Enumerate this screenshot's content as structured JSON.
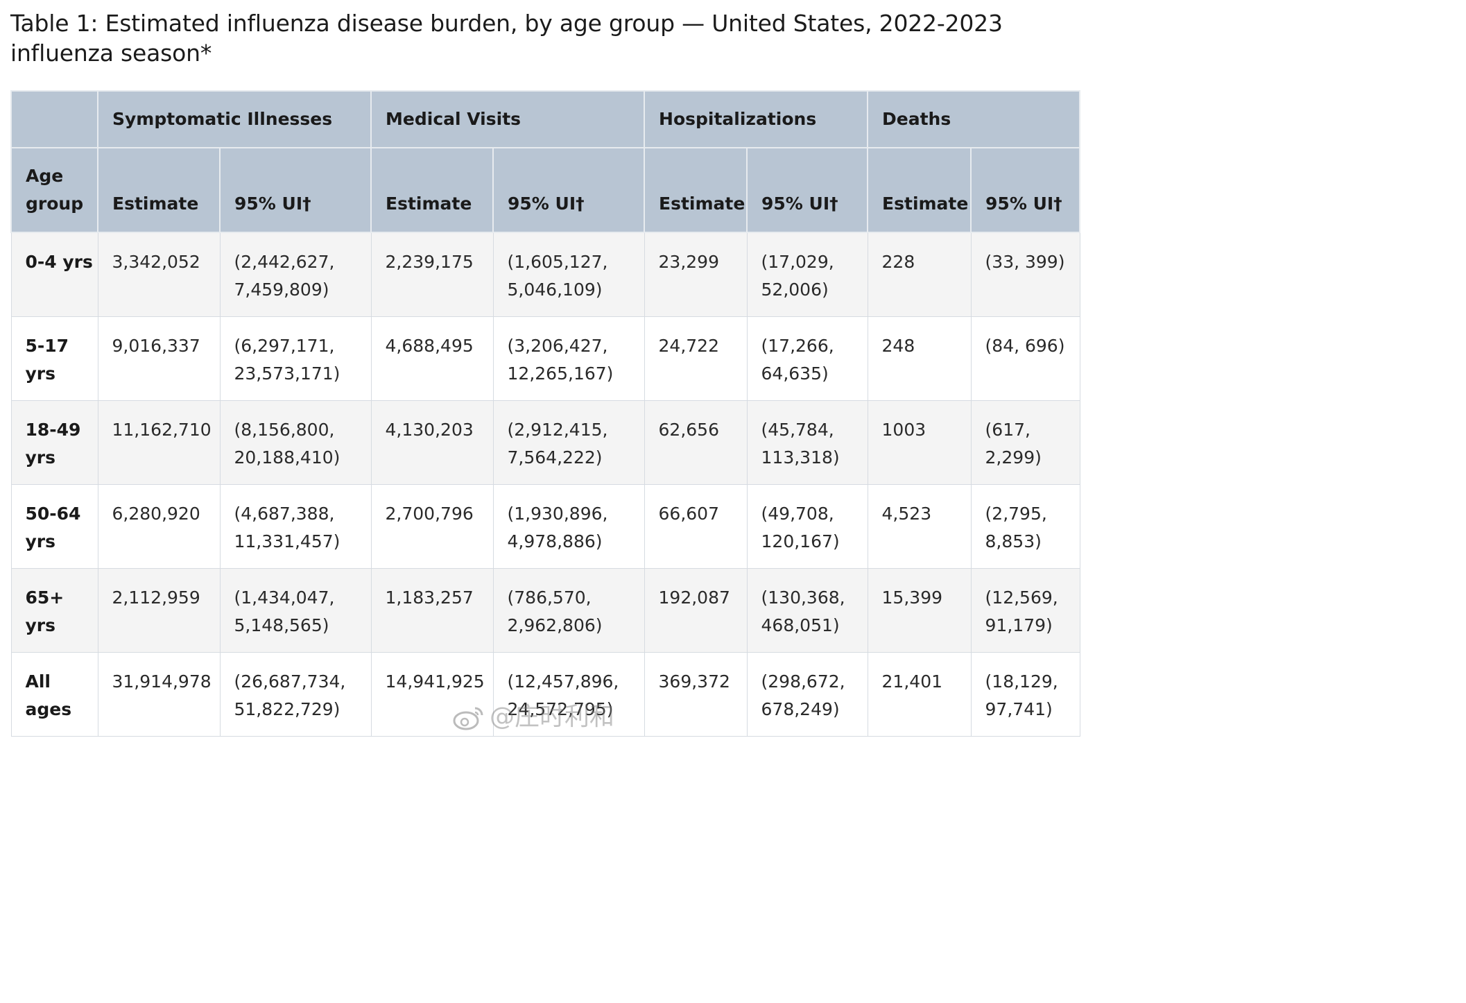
{
  "caption": "Table 1: Estimated influenza disease burden, by age group — United States, 2022-2023 influenza season*",
  "table": {
    "group_headers": [
      "",
      "Symptomatic Illnesses",
      "Medical Visits",
      "Hospitalizations",
      "Deaths"
    ],
    "sub_headers": [
      "Age group",
      "Estimate",
      "95% UI†",
      "Estimate",
      "95% UI†",
      "Estimate",
      "95% UI†",
      "Estimate",
      "95% UI†"
    ],
    "rows": [
      {
        "age": "0-4 yrs",
        "ill_est": "3,342,052",
        "ill_ui": "(2,442,627, 7,459,809)",
        "med_est": "2,239,175",
        "med_ui": "(1,605,127, 5,046,109)",
        "hosp_est": "23,299",
        "hosp_ui": "(17,029, 52,006)",
        "death_est": "228",
        "death_ui": "(33, 399)"
      },
      {
        "age": "5-17 yrs",
        "ill_est": "9,016,337",
        "ill_ui": "(6,297,171, 23,573,171)",
        "med_est": "4,688,495",
        "med_ui": "(3,206,427, 12,265,167)",
        "hosp_est": "24,722",
        "hosp_ui": "(17,266, 64,635)",
        "death_est": "248",
        "death_ui": "(84, 696)"
      },
      {
        "age": "18-49 yrs",
        "ill_est": "11,162,710",
        "ill_ui": "(8,156,800, 20,188,410)",
        "med_est": "4,130,203",
        "med_ui": "(2,912,415, 7,564,222)",
        "hosp_est": "62,656",
        "hosp_ui": "(45,784, 113,318)",
        "death_est": "1003",
        "death_ui": "(617, 2,299)"
      },
      {
        "age": "50-64 yrs",
        "ill_est": "6,280,920",
        "ill_ui": "(4,687,388, 11,331,457)",
        "med_est": "2,700,796",
        "med_ui": "(1,930,896, 4,978,886)",
        "hosp_est": "66,607",
        "hosp_ui": "(49,708, 120,167)",
        "death_est": "4,523",
        "death_ui": "(2,795, 8,853)"
      },
      {
        "age": "65+ yrs",
        "ill_est": "2,112,959",
        "ill_ui": "(1,434,047, 5,148,565)",
        "med_est": "1,183,257",
        "med_ui": "(786,570, 2,962,806)",
        "hosp_est": "192,087",
        "hosp_ui": "(130,368, 468,051)",
        "death_est": "15,399",
        "death_ui": "(12,569, 91,179)"
      },
      {
        "age": "All ages",
        "ill_est": "31,914,978",
        "ill_ui": "(26,687,734, 51,822,729)",
        "med_est": "14,941,925",
        "med_ui": "(12,457,896, 24,572,795)",
        "hosp_est": "369,372",
        "hosp_ui": "(298,672, 678,249)",
        "death_est": "21,401",
        "death_ui": "(18,129, 97,741)"
      }
    ]
  },
  "watermark": {
    "text": "@庄时利和",
    "icon": "weibo-logo-icon"
  },
  "colors": {
    "header_bg": "#b8c5d3",
    "row_alt_bg": "#f4f4f4",
    "border": "#d6dbe1"
  }
}
